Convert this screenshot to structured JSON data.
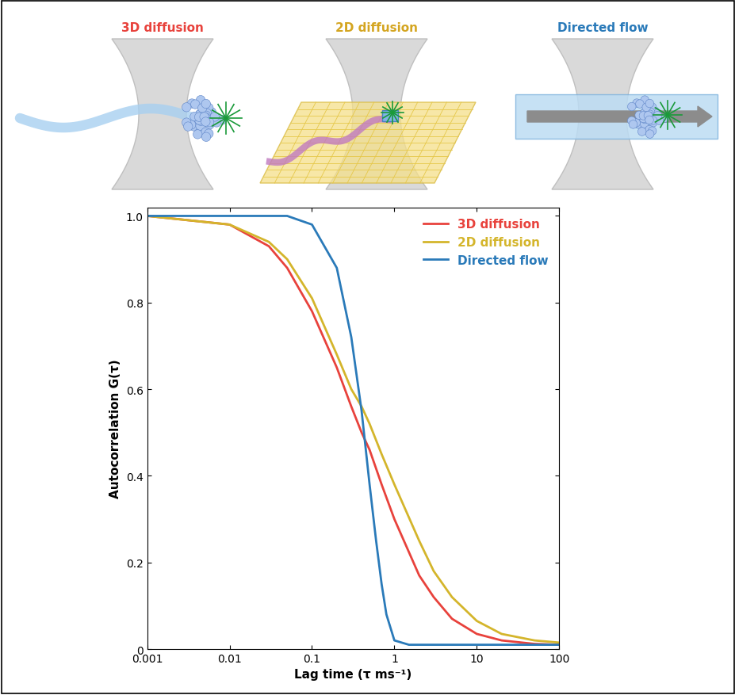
{
  "panels": [
    {
      "label": "3D diffusion",
      "color": "#e8423c"
    },
    {
      "label": "2D diffusion",
      "color": "#d4a520"
    },
    {
      "label": "Directed flow",
      "color": "#2a7ab9"
    }
  ],
  "chart_data": {
    "type": "line",
    "x_label": "Lag time (τ ms⁻¹)",
    "y_label": "Autocorrelation G(τ)",
    "log": "x",
    "xlim": [
      0.001,
      100
    ],
    "xticks": [
      0.001,
      0.01,
      0.1,
      1,
      10,
      100
    ],
    "ylim": [
      0,
      1.02
    ],
    "yticks": [
      0,
      0.2,
      0.4,
      0.6,
      0.8,
      1.0
    ],
    "legend": "upper right",
    "series": [
      {
        "name": "3D diffusion",
        "color": "#e8423c",
        "x": [
          0.001,
          0.01,
          0.03,
          0.05,
          0.1,
          0.2,
          0.3,
          0.4,
          0.5,
          0.7,
          1,
          2,
          3,
          5,
          10,
          20,
          50,
          100
        ],
        "values": [
          1.0,
          0.98,
          0.93,
          0.88,
          0.78,
          0.65,
          0.56,
          0.5,
          0.46,
          0.38,
          0.3,
          0.17,
          0.12,
          0.07,
          0.035,
          0.02,
          0.012,
          0.01
        ]
      },
      {
        "name": "2D diffusion",
        "color": "#d4b52b",
        "x": [
          0.001,
          0.01,
          0.03,
          0.05,
          0.1,
          0.2,
          0.3,
          0.4,
          0.5,
          0.7,
          1,
          2,
          3,
          5,
          10,
          20,
          50,
          100
        ],
        "values": [
          1.0,
          0.98,
          0.94,
          0.9,
          0.81,
          0.68,
          0.6,
          0.56,
          0.52,
          0.45,
          0.38,
          0.25,
          0.18,
          0.12,
          0.065,
          0.035,
          0.02,
          0.015
        ]
      },
      {
        "name": "Directed flow",
        "color": "#2a7ab9",
        "x": [
          0.001,
          0.01,
          0.05,
          0.1,
          0.2,
          0.3,
          0.4,
          0.5,
          0.6,
          0.7,
          0.8,
          1,
          1.5,
          2,
          10,
          100
        ],
        "values": [
          1.0,
          1.0,
          1.0,
          0.98,
          0.88,
          0.72,
          0.55,
          0.38,
          0.25,
          0.15,
          0.08,
          0.02,
          0.01,
          0.01,
          0.01,
          0.01
        ]
      }
    ]
  }
}
